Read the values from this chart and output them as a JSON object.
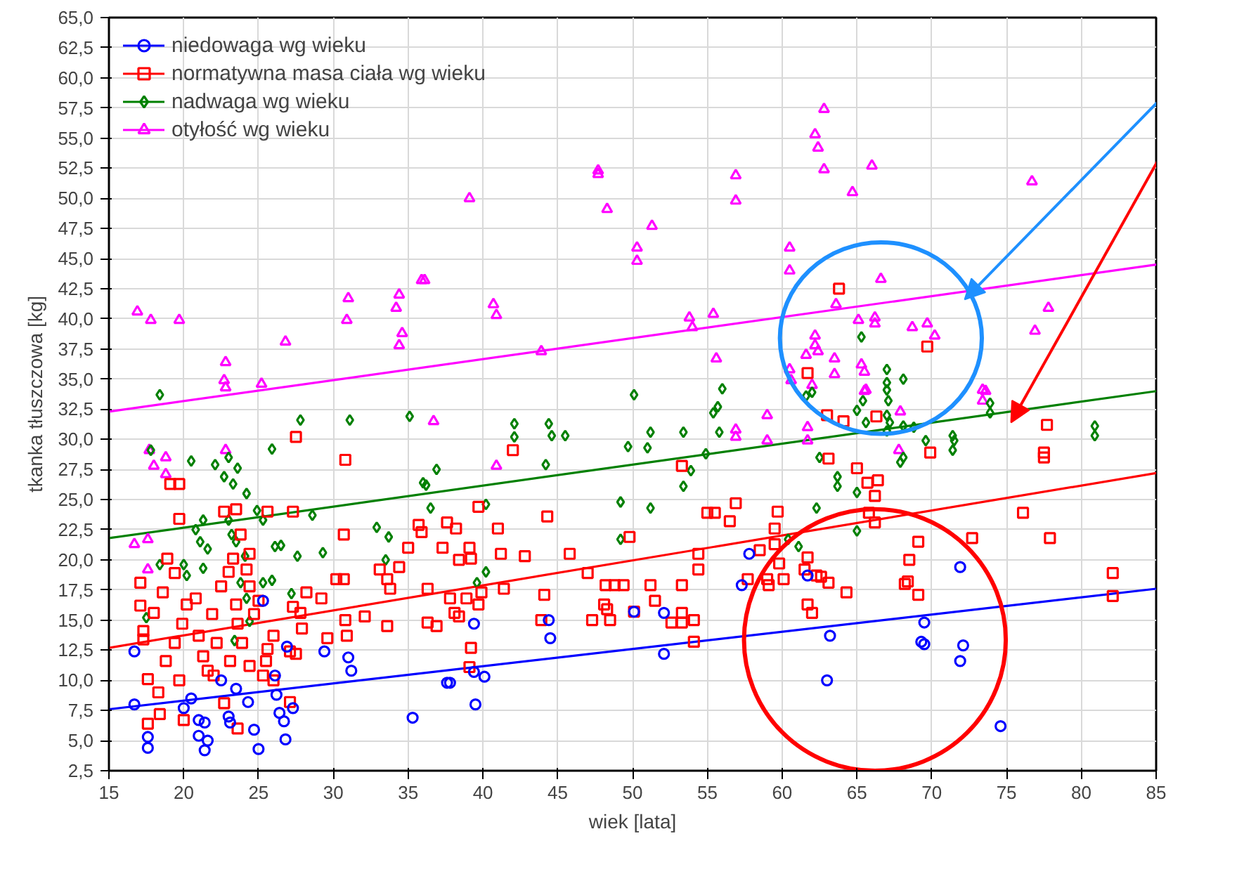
{
  "chart_data": {
    "type": "scatter",
    "xlabel": "wiek [lata]",
    "ylabel": "tkanka tłuszczowa [kg]",
    "xlim": [
      15,
      85
    ],
    "ylim": [
      2.5,
      65
    ],
    "xticks": [
      15,
      20,
      25,
      30,
      35,
      40,
      45,
      50,
      55,
      60,
      65,
      70,
      75,
      80,
      85
    ],
    "yticks": [
      {
        "value": 2.5,
        "label": "2,5"
      },
      {
        "value": 5,
        "label": "5,0"
      },
      {
        "value": 7.5,
        "label": "7,5"
      },
      {
        "value": 10,
        "label": "10,0"
      },
      {
        "value": 12.5,
        "label": "12,5"
      },
      {
        "value": 15,
        "label": "15,0"
      },
      {
        "value": 17.5,
        "label": "17,5"
      },
      {
        "value": 20,
        "label": "20,0"
      },
      {
        "value": 22.5,
        "label": "22,5"
      },
      {
        "value": 25,
        "label": "25,0"
      },
      {
        "value": 27.5,
        "label": "27,5"
      },
      {
        "value": 30,
        "label": "30,0"
      },
      {
        "value": 32.5,
        "label": "32,5"
      },
      {
        "value": 35,
        "label": "35,0"
      },
      {
        "value": 37.5,
        "label": "37,5"
      },
      {
        "value": 40,
        "label": "40,0"
      },
      {
        "value": 42.5,
        "label": "42,5"
      },
      {
        "value": 45,
        "label": "45,0"
      },
      {
        "value": 47.5,
        "label": "47,5"
      },
      {
        "value": 50,
        "label": "50,0"
      },
      {
        "value": 52.5,
        "label": "52,5"
      },
      {
        "value": 55,
        "label": "55,0"
      },
      {
        "value": 57.5,
        "label": "57,5"
      },
      {
        "value": 60,
        "label": "60,0"
      },
      {
        "value": 62.5,
        "label": "62,5"
      },
      {
        "value": 65,
        "label": "65,0"
      }
    ],
    "grid": true,
    "legend": "top left",
    "series": [
      {
        "name": "niedowaga wg wieku",
        "color": "#0000ff",
        "marker": "circle",
        "x": [
          16.7,
          16.7,
          17.6,
          17.6,
          20.0,
          20.5,
          21.0,
          21.4,
          21.0,
          21.6,
          21.4,
          23.1,
          23.0,
          22.5,
          23.5,
          24.3,
          24.7,
          25.0,
          25.3,
          26.1,
          26.2,
          26.4,
          26.7,
          26.8,
          27.3,
          26.9,
          29.4,
          31.0,
          31.2,
          35.3,
          37.6,
          37.8,
          39.4,
          39.4,
          40.1,
          39.5,
          44.4,
          44.5,
          50.1,
          52.1,
          52.1,
          57.8,
          57.3,
          61.7,
          63.2,
          63.0,
          69.5,
          69.3,
          69.5,
          71.9,
          72.1,
          71.9,
          74.6
        ],
        "values": [
          12.4,
          8.0,
          5.3,
          4.4,
          7.7,
          8.5,
          6.7,
          6.5,
          5.4,
          5.0,
          4.2,
          6.5,
          7.0,
          10.0,
          9.3,
          8.2,
          5.9,
          4.3,
          16.6,
          10.4,
          8.8,
          7.3,
          6.6,
          5.1,
          7.7,
          12.8,
          12.4,
          11.9,
          10.8,
          6.9,
          9.8,
          9.8,
          14.7,
          10.7,
          10.3,
          8.0,
          15.0,
          13.5,
          15.7,
          15.6,
          12.2,
          20.5,
          17.9,
          18.7,
          13.7,
          10.0,
          14.8,
          13.2,
          13.0,
          19.4,
          12.9,
          11.6,
          6.2
        ]
      },
      {
        "name": "normatywna masa ciała wg wieku",
        "color": "#ff0000",
        "marker": "square",
        "x": [
          27.5,
          30.8,
          42.0,
          19.1,
          19.7,
          19.7,
          22.7,
          23.5,
          25.6,
          27.3,
          30.7,
          35.7,
          35.9,
          37.6,
          38.2,
          39.7,
          41.0,
          44.3,
          49.8,
          35.0,
          37.3,
          39.1,
          38.4,
          39.2,
          41.2,
          42.8,
          45.8,
          34.4,
          33.1,
          33.6,
          33.8,
          30.2,
          30.7,
          29.2,
          32.1,
          33.6,
          36.3,
          37.8,
          38.9,
          38.1,
          38.4,
          39.7,
          39.9,
          41.4,
          36.3,
          36.9,
          47.0,
          48.2,
          48.8,
          49.4,
          44.1,
          43.9,
          47.3,
          48.5,
          48.1,
          48.3,
          50.1,
          30.8,
          30.9,
          29.6,
          27.8,
          27.9,
          28.2,
          27.3,
          26.0,
          25.6,
          26.0,
          27.1,
          27.5,
          27.1,
          39.2,
          39.1,
          17.1,
          17.1,
          17.3,
          17.3,
          18.0,
          18.6,
          18.9,
          19.4,
          17.6,
          18.3,
          18.4,
          17.6,
          20.0,
          19.7,
          18.8,
          19.4,
          19.9,
          20.2,
          20.8,
          21.0,
          21.3,
          21.6,
          22.2,
          21.9,
          22.5,
          23.0,
          23.3,
          23.8,
          23.5,
          23.6,
          23.9,
          23.1,
          22.7,
          23.6,
          24.4,
          24.7,
          25.0,
          24.4,
          25.5,
          25.3,
          24.4,
          24.2,
          22.0,
          53.3,
          56.9,
          55.5,
          55.0,
          56.5,
          59.5,
          59.7,
          58.5,
          59.5,
          54.4,
          54.4,
          51.2,
          51.5,
          53.3,
          53.3,
          52.6,
          53.3,
          54.1,
          54.1,
          57.7,
          59.0,
          59.1,
          60.1,
          59.8,
          61.7,
          61.5,
          62.3,
          62.6,
          63.1,
          64.3,
          61.7,
          62.0,
          63.1,
          65.0,
          65.7,
          66.4,
          66.2,
          65.8,
          66.2,
          63.0,
          64.1,
          66.3,
          69.9,
          68.5,
          69.1,
          68.2,
          68.4,
          69.1,
          72.7,
          76.1,
          77.9,
          77.7,
          77.5,
          77.5,
          82.1,
          82.1,
          63.8,
          69.7,
          61.7
        ],
        "values": [
          30.2,
          28.3,
          29.1,
          26.3,
          26.3,
          23.4,
          24.0,
          24.2,
          24.0,
          24.0,
          22.1,
          22.9,
          22.3,
          23.1,
          22.6,
          24.4,
          22.6,
          23.6,
          21.9,
          21.0,
          21.0,
          21.0,
          20.0,
          20.1,
          20.5,
          20.3,
          20.5,
          19.4,
          19.2,
          18.4,
          17.6,
          18.4,
          18.4,
          16.8,
          15.3,
          14.5,
          17.6,
          16.8,
          16.8,
          15.6,
          15.3,
          16.3,
          17.3,
          17.6,
          14.8,
          14.5,
          18.9,
          17.9,
          17.9,
          17.9,
          17.1,
          15.0,
          15.0,
          15.0,
          16.3,
          15.9,
          15.7,
          15.0,
          13.7,
          13.5,
          15.6,
          14.3,
          17.3,
          16.1,
          13.7,
          12.6,
          10.0,
          12.4,
          12.2,
          8.2,
          12.7,
          11.1,
          18.1,
          16.2,
          14.1,
          13.4,
          15.6,
          17.3,
          20.1,
          18.9,
          10.1,
          9.0,
          7.2,
          6.4,
          6.7,
          10.0,
          11.6,
          13.1,
          14.7,
          16.3,
          16.8,
          13.7,
          12.0,
          10.8,
          13.1,
          15.5,
          17.8,
          19.0,
          20.1,
          22.1,
          16.3,
          14.7,
          13.1,
          11.6,
          8.1,
          6.0,
          11.2,
          15.5,
          16.6,
          17.8,
          11.6,
          10.4,
          20.5,
          19.2,
          10.4,
          27.8,
          24.7,
          23.9,
          23.9,
          23.2,
          22.6,
          24.0,
          20.8,
          21.3,
          20.5,
          19.2,
          17.9,
          16.6,
          17.9,
          15.6,
          14.8,
          14.8,
          15.0,
          13.2,
          18.4,
          18.4,
          17.9,
          18.4,
          19.7,
          20.2,
          19.2,
          18.7,
          18.6,
          18.1,
          17.3,
          16.3,
          15.6,
          28.4,
          27.6,
          26.4,
          26.6,
          25.3,
          23.9,
          23.1,
          32.0,
          31.5,
          31.9,
          28.9,
          20.0,
          21.5,
          18.0,
          18.2,
          17.1,
          21.8,
          23.9,
          21.8,
          31.2,
          28.9,
          28.5,
          18.9,
          17.0,
          42.5,
          37.7,
          35.5
        ]
      },
      {
        "name": "nadwaga wg wieku",
        "color": "#008000",
        "marker": "diamond",
        "x": [
          18.4,
          27.8,
          31.1,
          35.1,
          42.1,
          42.1,
          44.4,
          44.6,
          45.5,
          50.1,
          49.7,
          25.9,
          20.5,
          22.1,
          23.0,
          23.6,
          22.7,
          23.3,
          24.2,
          17.8,
          36.0,
          36.2,
          36.9,
          44.2,
          40.2,
          36.5,
          24.9,
          25.3,
          28.6,
          32.9,
          33.7,
          21.3,
          20.8,
          23.0,
          23.2,
          23.5,
          21.1,
          21.6,
          26.1,
          26.5,
          29.3,
          27.6,
          24.1,
          18.4,
          20.0,
          21.3,
          20.2,
          33.5,
          23.8,
          24.2,
          25.3,
          25.9,
          27.2,
          17.5,
          24.4,
          23.4,
          39.6,
          40.2,
          49.2,
          49.2,
          56.0,
          55.7,
          55.4,
          51.2,
          51.0,
          53.4,
          55.8,
          54.9,
          53.9,
          53.4,
          51.2,
          62.3,
          63.7,
          63.7,
          65.0,
          65.0,
          62.5,
          60.4,
          61.1,
          80.9,
          80.9,
          71.4,
          71.5,
          71.4,
          73.9,
          73.9,
          69.6,
          68.1,
          67.9,
          68.8,
          68.1,
          67.0,
          67.2,
          67.0,
          65.6,
          65.0,
          65.4,
          67.1,
          67.0,
          61.6,
          62.0,
          65.3,
          67.0,
          68.1,
          67.0
        ],
        "values": [
          33.7,
          31.6,
          31.6,
          31.9,
          31.3,
          30.2,
          31.3,
          30.3,
          30.3,
          33.7,
          29.4,
          29.2,
          28.2,
          27.9,
          28.5,
          27.6,
          26.9,
          26.3,
          25.5,
          29.1,
          26.4,
          26.2,
          27.5,
          27.9,
          24.6,
          24.3,
          24.1,
          23.3,
          23.7,
          22.7,
          21.9,
          23.3,
          22.5,
          23.3,
          22.1,
          21.5,
          21.5,
          20.9,
          21.1,
          21.2,
          20.6,
          20.3,
          20.3,
          19.6,
          19.6,
          19.3,
          18.7,
          20.0,
          18.1,
          16.8,
          18.1,
          18.3,
          17.2,
          15.2,
          14.9,
          13.3,
          18.1,
          19.0,
          24.8,
          21.7,
          34.2,
          32.7,
          32.2,
          30.6,
          29.3,
          30.6,
          30.6,
          28.8,
          27.4,
          26.1,
          24.3,
          24.3,
          26.9,
          26.1,
          25.6,
          22.4,
          28.5,
          21.7,
          21.1,
          31.1,
          30.3,
          30.3,
          29.9,
          29.1,
          33.0,
          32.2,
          29.9,
          28.5,
          28.1,
          31.0,
          31.1,
          32.0,
          31.4,
          30.7,
          31.4,
          32.4,
          33.2,
          33.2,
          34.1,
          33.6,
          33.9,
          38.5,
          35.8,
          35.0,
          34.7
        ]
      },
      {
        "name": "otyłość wg wieku",
        "color": "#ff00ff",
        "marker": "triangle",
        "x": [
          16.9,
          17.8,
          19.7,
          22.8,
          22.7,
          22.8,
          25.2,
          26.8,
          30.9,
          31.0,
          34.4,
          34.2,
          34.6,
          34.4,
          35.9,
          36.1,
          39.1,
          40.7,
          40.9,
          43.9,
          47.7,
          47.7,
          48.3,
          50.3,
          50.3,
          51.3,
          56.9,
          56.9,
          60.5,
          60.5,
          62.8,
          62.2,
          62.4,
          62.8,
          66.0,
          64.7,
          76.7,
          66.6,
          63.6,
          53.8,
          54.0,
          55.4,
          55.6,
          65.1,
          66.2,
          66.2,
          68.7,
          69.7,
          70.2,
          77.8,
          76.9,
          62.2,
          62.2,
          62.4,
          61.6,
          63.5,
          63.5,
          60.5,
          60.6,
          65.3,
          65.5,
          65.5,
          73.6,
          59.0,
          59.0,
          56.9,
          56.9,
          61.7,
          61.7,
          67.9,
          67.8,
          73.4,
          73.4,
          62.0,
          65.6,
          36.7,
          40.9,
          17.7,
          18.0,
          18.8,
          18.8,
          16.7,
          17.6,
          17.6,
          22.8
        ],
        "values": [
          40.6,
          39.9,
          39.9,
          36.4,
          34.9,
          34.3,
          34.6,
          38.1,
          39.9,
          41.7,
          42.0,
          40.9,
          38.8,
          37.8,
          43.2,
          43.2,
          50.0,
          41.2,
          40.3,
          37.3,
          52.0,
          52.3,
          49.1,
          45.9,
          44.8,
          47.7,
          51.9,
          49.8,
          45.9,
          44.0,
          57.4,
          55.3,
          54.2,
          52.4,
          52.7,
          50.5,
          51.4,
          43.3,
          41.2,
          40.1,
          39.3,
          40.4,
          36.7,
          39.9,
          40.1,
          39.6,
          39.3,
          39.6,
          38.6,
          40.9,
          39.0,
          38.6,
          37.8,
          37.3,
          37.0,
          36.7,
          35.4,
          35.8,
          34.9,
          36.2,
          35.6,
          34.0,
          34.0,
          32.0,
          29.9,
          30.8,
          30.2,
          31.0,
          29.9,
          32.3,
          29.1,
          34.1,
          33.2,
          34.5,
          34.1,
          31.5,
          27.8,
          29.1,
          27.8,
          28.5,
          27.1,
          21.3,
          21.7,
          19.2,
          29.1
        ]
      },
      {
        "type": "line",
        "color": "#0000ff",
        "x": [
          15,
          85
        ],
        "values": [
          7.6,
          17.6
        ]
      },
      {
        "type": "line",
        "color": "#ff0000",
        "x": [
          15,
          85
        ],
        "values": [
          12.7,
          27.2
        ]
      },
      {
        "type": "line",
        "color": "#008000",
        "x": [
          15,
          85
        ],
        "values": [
          21.8,
          34.0
        ]
      },
      {
        "type": "line",
        "color": "#ff00ff",
        "x": [
          15,
          85
        ],
        "values": [
          32.3,
          44.5
        ]
      }
    ]
  }
}
